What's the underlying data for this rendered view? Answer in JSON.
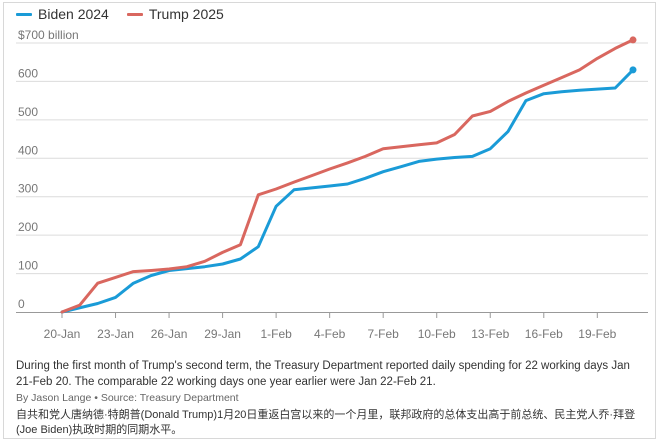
{
  "chart_data": {
    "type": "line",
    "title": "",
    "xlabel": "",
    "ylabel": "",
    "y_unit_label": "$700 billion",
    "ylim": [
      0,
      700
    ],
    "yticks": [
      0,
      100,
      200,
      300,
      400,
      500,
      600,
      700
    ],
    "ytick_labels": [
      "0",
      "100",
      "200",
      "300",
      "400",
      "500",
      "600",
      "$700 billion"
    ],
    "xlim": [
      "20-Jan",
      "21-Feb"
    ],
    "xticks": [
      "20-Jan",
      "23-Jan",
      "26-Jan",
      "29-Jan",
      "1-Feb",
      "4-Feb",
      "7-Feb",
      "10-Feb",
      "13-Feb",
      "16-Feb",
      "19-Feb"
    ],
    "grid": true,
    "legend": "top-left",
    "series": [
      {
        "name": "Biden 2024",
        "color": "#1a9bd7",
        "end_marker": true,
        "points": [
          [
            "20-Jan",
            0
          ],
          [
            "22-Jan",
            22
          ],
          [
            "23-Jan",
            38
          ],
          [
            "24-Jan",
            75
          ],
          [
            "25-Jan",
            95
          ],
          [
            "26-Jan",
            108
          ],
          [
            "27-Jan",
            113
          ],
          [
            "28-Jan",
            118
          ],
          [
            "29-Jan",
            125
          ],
          [
            "30-Jan",
            138
          ],
          [
            "31-Jan",
            170
          ],
          [
            "1-Feb",
            275
          ],
          [
            "2-Feb",
            318
          ],
          [
            "3-Feb",
            323
          ],
          [
            "4-Feb",
            328
          ],
          [
            "5-Feb",
            333
          ],
          [
            "6-Feb",
            348
          ],
          [
            "7-Feb",
            365
          ],
          [
            "8-Feb",
            378
          ],
          [
            "9-Feb",
            392
          ],
          [
            "10-Feb",
            398
          ],
          [
            "11-Feb",
            402
          ],
          [
            "12-Feb",
            405
          ],
          [
            "13-Feb",
            425
          ],
          [
            "14-Feb",
            470
          ],
          [
            "15-Feb",
            550
          ],
          [
            "16-Feb",
            568
          ],
          [
            "17-Feb",
            573
          ],
          [
            "18-Feb",
            577
          ],
          [
            "19-Feb",
            580
          ],
          [
            "20-Feb",
            583
          ],
          [
            "21-Feb",
            630
          ]
        ]
      },
      {
        "name": "Trump 2025",
        "color": "#d9675f",
        "end_marker": true,
        "points": [
          [
            "20-Jan",
            0
          ],
          [
            "21-Jan",
            18
          ],
          [
            "22-Jan",
            75
          ],
          [
            "23-Jan",
            90
          ],
          [
            "24-Jan",
            105
          ],
          [
            "25-Jan",
            108
          ],
          [
            "26-Jan",
            112
          ],
          [
            "27-Jan",
            118
          ],
          [
            "28-Jan",
            132
          ],
          [
            "29-Jan",
            155
          ],
          [
            "30-Jan",
            175
          ],
          [
            "31-Jan",
            305
          ],
          [
            "1-Feb",
            320
          ],
          [
            "2-Feb",
            338
          ],
          [
            "3-Feb",
            355
          ],
          [
            "4-Feb",
            372
          ],
          [
            "5-Feb",
            388
          ],
          [
            "6-Feb",
            405
          ],
          [
            "7-Feb",
            425
          ],
          [
            "8-Feb",
            430
          ],
          [
            "9-Feb",
            435
          ],
          [
            "10-Feb",
            440
          ],
          [
            "11-Feb",
            462
          ],
          [
            "12-Feb",
            510
          ],
          [
            "13-Feb",
            522
          ],
          [
            "14-Feb",
            548
          ],
          [
            "15-Feb",
            570
          ],
          [
            "16-Feb",
            590
          ],
          [
            "17-Feb",
            610
          ],
          [
            "18-Feb",
            630
          ],
          [
            "19-Feb",
            660
          ],
          [
            "20-Feb",
            686
          ],
          [
            "21-Feb",
            708
          ]
        ]
      }
    ]
  },
  "caption": "During the first month of Trump's second term, the Treasury Department reported daily spending for 22 working days Jan 21-Feb 20. The comparable 22 working days one year earlier were Jan 22-Feb 21.",
  "byline": "By Jason Lange • Source: Treasury Department",
  "caption_zh": "自共和党人唐纳德·特朗普(Donald Trump)1月20日重返白宫以来的一个月里，联邦政府的总体支出高于前总统、民主党人乔·拜登(Joe Biden)执政时期的同期水平。"
}
